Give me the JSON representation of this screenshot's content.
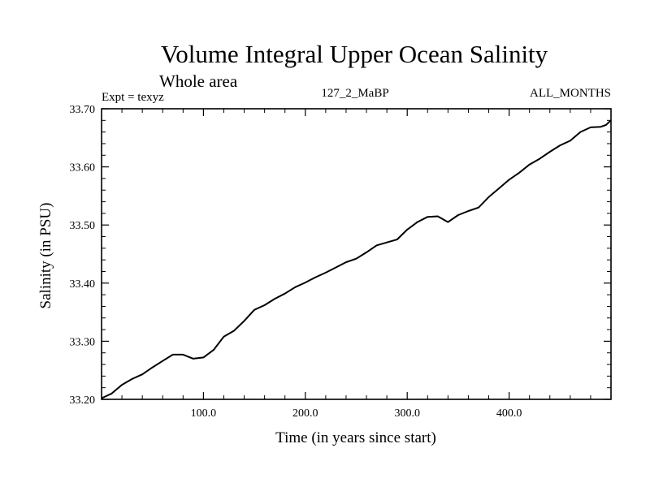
{
  "chart_data": {
    "type": "line",
    "title": "Volume Integral Upper Ocean Salinity",
    "subtitle": "Whole area",
    "left_label": "Expt = texyz",
    "center_label": "127_2_MaBP",
    "right_label": "ALL_MONTHS",
    "xlabel": "Time (in years since start)",
    "ylabel": "Salinity (in PSU)",
    "xlim": [
      0,
      500
    ],
    "ylim": [
      33.2,
      33.7
    ],
    "x_ticks": [
      100,
      200,
      300,
      400
    ],
    "x_tick_labels": [
      "100.0",
      "200.0",
      "300.0",
      "400.0"
    ],
    "y_ticks": [
      33.2,
      33.3,
      33.4,
      33.5,
      33.6,
      33.7
    ],
    "y_tick_labels": [
      "33.20",
      "33.30",
      "33.40",
      "33.50",
      "33.60",
      "33.70"
    ],
    "grid": false,
    "line_color": "#000000",
    "series": [
      {
        "x": [
          0,
          10,
          20,
          30,
          40,
          50,
          60,
          70,
          80,
          90,
          100,
          110,
          120,
          130,
          140,
          150,
          160,
          170,
          180,
          190,
          200,
          210,
          220,
          230,
          240,
          250,
          260,
          270,
          280,
          290,
          300,
          310,
          320,
          330,
          340,
          350,
          360,
          370,
          380,
          390,
          400,
          410,
          420,
          430,
          440,
          450,
          460,
          470,
          480,
          490,
          495,
          500
        ],
        "y": [
          33.202,
          33.21,
          33.225,
          33.235,
          33.243,
          33.255,
          33.266,
          33.277,
          33.277,
          33.27,
          33.272,
          33.285,
          33.308,
          33.318,
          33.335,
          33.354,
          33.362,
          33.373,
          33.382,
          33.393,
          33.401,
          33.41,
          33.418,
          33.427,
          33.436,
          33.442,
          33.453,
          33.465,
          33.47,
          33.475,
          33.492,
          33.505,
          33.514,
          33.515,
          33.505,
          33.517,
          33.524,
          33.53,
          33.548,
          33.563,
          33.578,
          33.59,
          33.604,
          33.614,
          33.626,
          33.637,
          33.645,
          33.66,
          33.668,
          33.669,
          33.672,
          33.68
        ]
      }
    ]
  }
}
